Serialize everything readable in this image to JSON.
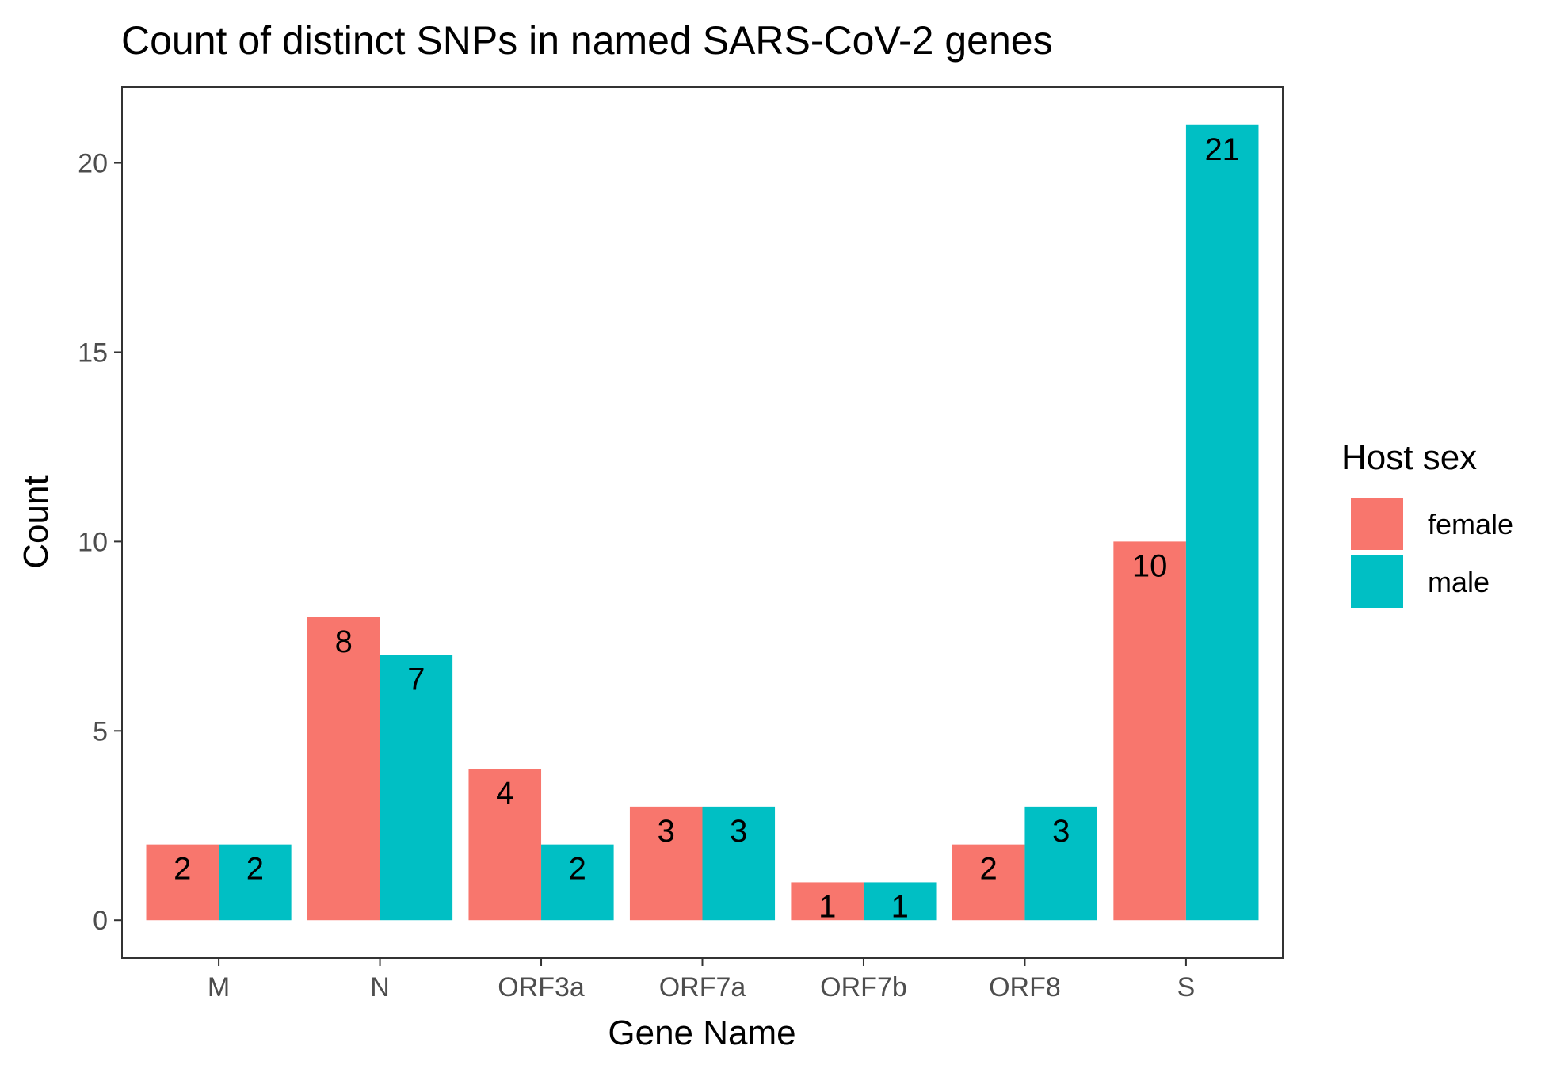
{
  "chart_data": {
    "type": "bar",
    "title": "Count of distinct SNPs in named SARS-CoV-2 genes",
    "xlabel": "Gene Name",
    "ylabel": "Count",
    "categories": [
      "M",
      "N",
      "ORF3a",
      "ORF7a",
      "ORF7b",
      "ORF8",
      "S"
    ],
    "series": [
      {
        "name": "female",
        "color": "#F8766D",
        "values": [
          2,
          8,
          4,
          3,
          1,
          2,
          10
        ]
      },
      {
        "name": "male",
        "color": "#00BFC4",
        "values": [
          2,
          7,
          2,
          3,
          1,
          3,
          21
        ]
      }
    ],
    "ylim": [
      -1,
      22
    ],
    "yticks": [
      0,
      5,
      10,
      15,
      20
    ],
    "grid": false,
    "legend": {
      "title": "Host sex",
      "position": "right"
    }
  }
}
